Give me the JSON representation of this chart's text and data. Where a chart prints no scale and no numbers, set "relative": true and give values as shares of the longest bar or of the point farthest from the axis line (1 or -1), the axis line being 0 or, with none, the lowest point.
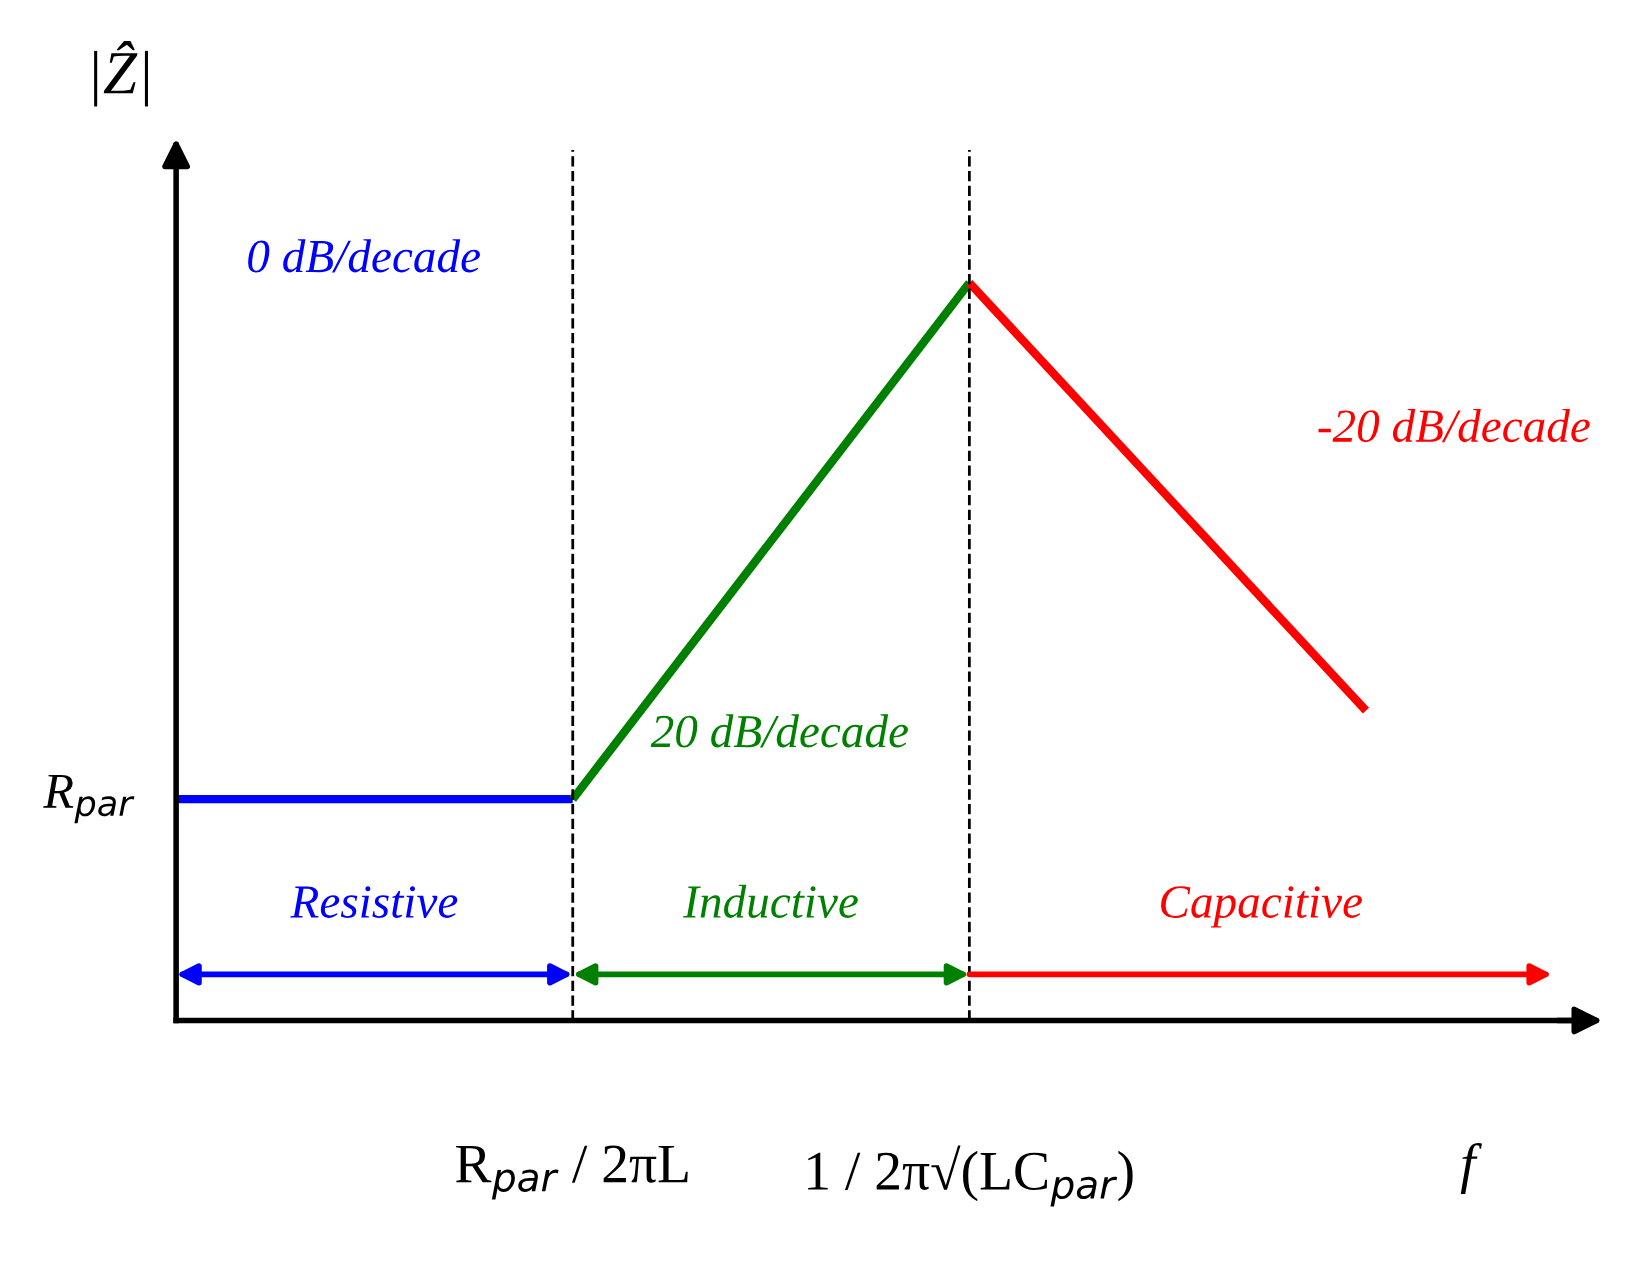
{
  "chart_data": {
    "type": "line",
    "relative": true,
    "ylabel": "|Ẑ|",
    "xlabel": "f",
    "categories": [
      null,
      "R$_{par}$ / 2πL",
      "1 / 2π√(LC$_{par}$)",
      null
    ],
    "series": [
      {
        "color": "#0000ff",
        "values": [
          0.3,
          0.3,
          null,
          null
        ]
      },
      {
        "color": "#008000",
        "values": [
          null,
          0.3,
          1,
          null
        ]
      },
      {
        "color": "#ff0000",
        "values": [
          null,
          null,
          1,
          0.42
        ]
      }
    ],
    "ref_lines": [
      {
        "axis": "x",
        "value": "R$_{par}$ / 2πL",
        "color": "#000000",
        "line_style": "dashed"
      },
      {
        "axis": "x",
        "value": "1 / 2π√(LC$_{par}$)",
        "color": "#000000",
        "line_style": "dashed"
      }
    ],
    "annotations": [
      "R$_{par}$",
      "0 dB/decade",
      "20 dB/decade",
      "-20 dB/decade",
      "Resistive",
      "Inductive",
      "Capacitive"
    ],
    "grid": false,
    "legend": false,
    "line_style": "solid",
    "marker": "none"
  }
}
